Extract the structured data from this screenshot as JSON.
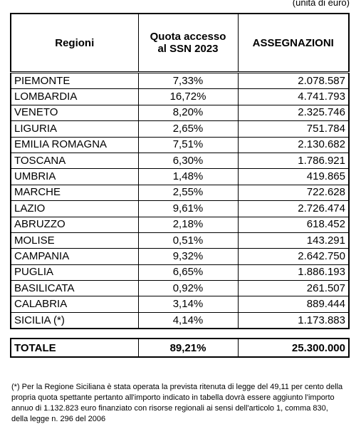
{
  "unit_note": "(unità di euro)",
  "table": {
    "header": [
      "Regioni",
      "Quota accesso al SSN 2023",
      "ASSEGNAZIONI"
    ],
    "rows": [
      [
        "PIEMONTE",
        "7,33%",
        "2.078.587"
      ],
      [
        "LOMBARDIA",
        "16,72%",
        "4.741.793"
      ],
      [
        "VENETO",
        "8,20%",
        "2.325.746"
      ],
      [
        "LIGURIA",
        "2,65%",
        "751.784"
      ],
      [
        "EMILIA ROMAGNA",
        "7,51%",
        "2.130.682"
      ],
      [
        "TOSCANA",
        "6,30%",
        "1.786.921"
      ],
      [
        "UMBRIA",
        "1,48%",
        "419.865"
      ],
      [
        "MARCHE",
        "2,55%",
        "722.628"
      ],
      [
        "LAZIO",
        "9,61%",
        "2.726.474"
      ],
      [
        "ABRUZZO",
        "2,18%",
        "618.452"
      ],
      [
        "MOLISE",
        "0,51%",
        "143.291"
      ],
      [
        "CAMPANIA",
        "9,32%",
        "2.642.750"
      ],
      [
        "PUGLIA",
        "6,65%",
        "1.886.193"
      ],
      [
        "BASILICATA",
        "0,92%",
        "261.507"
      ],
      [
        "CALABRIA",
        "3,14%",
        "889.444"
      ],
      [
        "SICILIA (*)",
        "4,14%",
        "1.173.883"
      ]
    ],
    "total": [
      "TOTALE",
      "89,21%",
      "25.300.000"
    ]
  },
  "footnote": "(*) Per la Regione Siciliana è stata operata la prevista ritenuta di legge del 49,11 per cento della propria quota spettante pertanto all'importo indicato in tabella dovrà essere aggiunto l'importo annuo di 1.132.823 euro finanziato con risorse regionali ai sensi dell'articolo 1, comma 830, della legge n. 296 del 2006"
}
